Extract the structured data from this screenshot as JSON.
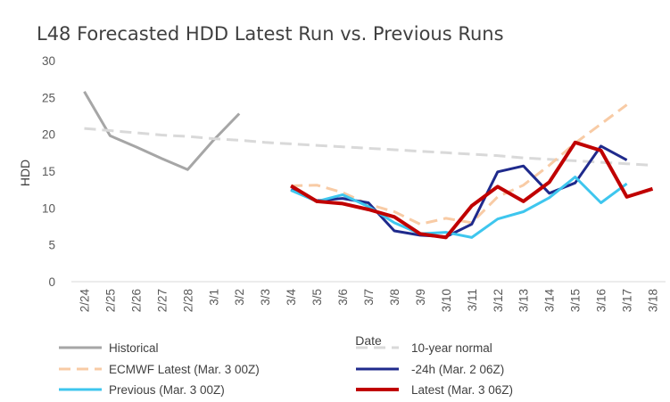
{
  "chart_data": {
    "type": "line",
    "title": "L48 Forecasted HDD Latest Run vs. Previous Runs",
    "xlabel": "Date",
    "ylabel": "HDD",
    "ylim": [
      0,
      30
    ],
    "yticks": [
      0,
      5,
      10,
      15,
      20,
      25,
      30
    ],
    "grid": false,
    "legend_position": "bottom",
    "categories": [
      "2/24",
      "2/25",
      "2/26",
      "2/27",
      "2/28",
      "3/1",
      "3/2",
      "3/3",
      "3/4",
      "3/5",
      "3/6",
      "3/7",
      "3/8",
      "3/9",
      "3/10",
      "3/11",
      "3/12",
      "3/13",
      "3/14",
      "3/15",
      "3/16",
      "3/17",
      "3/18"
    ],
    "series": [
      {
        "name": "Historical",
        "color": "#a6a6a6",
        "dash": "solid",
        "weight": "medium",
        "values": [
          25.8,
          19.8,
          18.3,
          16.7,
          15.2,
          19.2,
          22.8,
          null,
          null,
          null,
          null,
          null,
          null,
          null,
          null,
          null,
          null,
          null,
          null,
          null,
          null,
          null,
          null
        ]
      },
      {
        "name": "10-year normal",
        "color": "#d9d9d9",
        "dash": "dashed",
        "weight": "medium",
        "values": [
          20.8,
          20.5,
          20.2,
          19.9,
          19.7,
          19.4,
          19.2,
          18.9,
          18.7,
          18.5,
          18.3,
          18.1,
          17.9,
          17.7,
          17.5,
          17.3,
          17.1,
          16.8,
          16.6,
          16.4,
          16.2,
          16.0,
          15.8
        ]
      },
      {
        "name": "ECMWF Latest (Mar. 3 00Z)",
        "color": "#f8cba5",
        "dash": "dashed",
        "weight": "medium",
        "values": [
          null,
          null,
          null,
          null,
          null,
          null,
          null,
          null,
          13.0,
          13.1,
          12.1,
          10.5,
          9.5,
          7.8,
          8.6,
          8.0,
          11.5,
          13.1,
          15.8,
          18.8,
          21.4,
          24.0,
          null
        ]
      },
      {
        "name": "-24h (Mar. 2 06Z)",
        "color": "#1f2a8c",
        "dash": "solid",
        "weight": "medium",
        "values": [
          null,
          null,
          null,
          null,
          null,
          null,
          null,
          null,
          12.5,
          11.0,
          11.3,
          10.7,
          6.9,
          6.3,
          6.1,
          7.8,
          14.9,
          15.7,
          12.0,
          13.4,
          18.4,
          16.5,
          null
        ]
      },
      {
        "name": "Previous (Mar. 3 00Z)",
        "color": "#3ec6ee",
        "dash": "solid",
        "weight": "medium",
        "values": [
          null,
          null,
          null,
          null,
          null,
          null,
          null,
          null,
          12.4,
          10.9,
          11.8,
          10.2,
          8.0,
          6.5,
          6.7,
          6.0,
          8.5,
          9.5,
          11.4,
          14.2,
          10.7,
          13.3,
          null
        ]
      },
      {
        "name": "Latest (Mar. 3 06Z)",
        "color": "#c00000",
        "dash": "solid",
        "weight": "heavy",
        "values": [
          null,
          null,
          null,
          null,
          null,
          null,
          null,
          null,
          13.0,
          10.9,
          10.6,
          9.8,
          8.8,
          6.5,
          6.0,
          10.3,
          12.9,
          10.9,
          13.5,
          18.9,
          17.8,
          11.5,
          12.6
        ]
      }
    ]
  }
}
